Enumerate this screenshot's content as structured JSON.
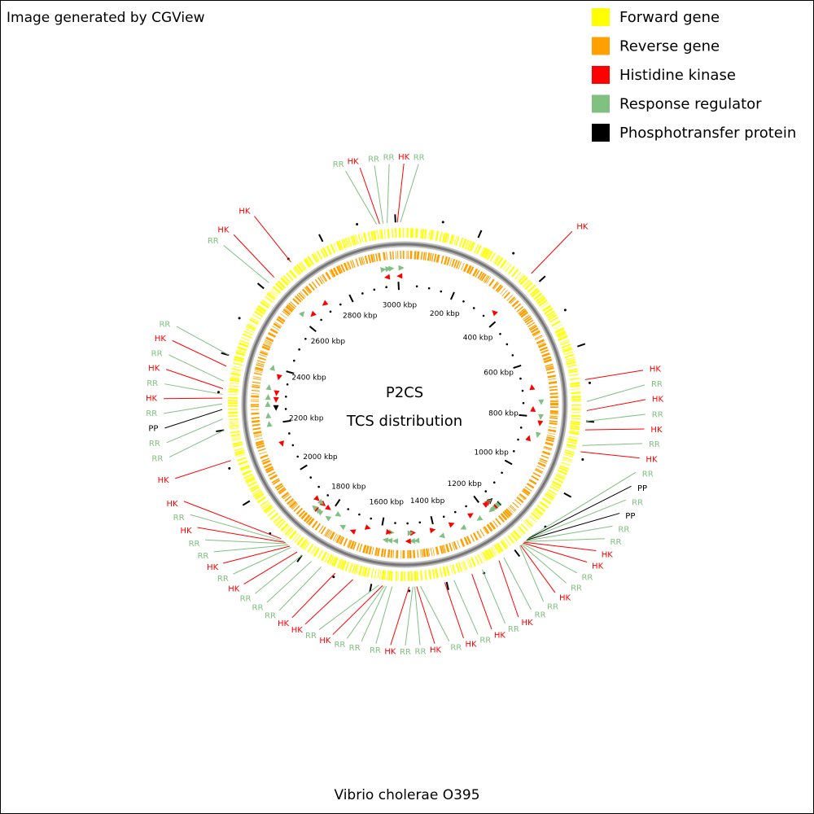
{
  "header": {
    "credit": "Image generated by CGView"
  },
  "legend": [
    {
      "label": "Forward gene",
      "color": "#ffff00"
    },
    {
      "label": "Reverse gene",
      "color": "#ff9f00"
    },
    {
      "label": "Histidine kinase",
      "color": "#ff0000"
    },
    {
      "label": "Response regulator",
      "color": "#80c080"
    },
    {
      "label": "Phosphotransfer protein",
      "color": "#000000"
    }
  ],
  "center": {
    "title": "P2CS",
    "subtitle": "TCS distribution"
  },
  "ruler": {
    "genome_length_kbp": 3024,
    "ticks": [
      {
        "value": 200,
        "label": "200 kbp"
      },
      {
        "value": 400,
        "label": "400 kbp"
      },
      {
        "value": 600,
        "label": "600 kbp"
      },
      {
        "value": 800,
        "label": "800 kbp"
      },
      {
        "value": 1000,
        "label": "1000 kbp"
      },
      {
        "value": 1200,
        "label": "1200 kbp"
      },
      {
        "value": 1400,
        "label": "1400 kbp"
      },
      {
        "value": 1600,
        "label": "1600 kbp"
      },
      {
        "value": 1800,
        "label": "1800 kbp"
      },
      {
        "value": 2000,
        "label": "2000 kbp"
      },
      {
        "value": 2200,
        "label": "2200 kbp"
      },
      {
        "value": 2400,
        "label": "2400 kbp"
      },
      {
        "value": 2600,
        "label": "2600 kbp"
      },
      {
        "value": 2800,
        "label": "2800 kbp"
      },
      {
        "value": 3000,
        "label": "3000 kbp"
      }
    ]
  },
  "features": [
    {
      "label": "HK",
      "legend": 2,
      "position_kbp": 370,
      "strand": "-"
    },
    {
      "label": "HK",
      "legend": 2,
      "position_kbp": 690,
      "strand": "-"
    },
    {
      "label": "RR",
      "legend": 3,
      "position_kbp": 748,
      "strand": "+"
    },
    {
      "label": "HK",
      "legend": 2,
      "position_kbp": 772,
      "strand": "-"
    },
    {
      "label": "RR",
      "legend": 3,
      "position_kbp": 800,
      "strand": "+"
    },
    {
      "label": "HK",
      "legend": 2,
      "position_kbp": 823,
      "strand": "+"
    },
    {
      "label": "RR",
      "legend": 3,
      "position_kbp": 865,
      "strand": "+"
    },
    {
      "label": "HK",
      "legend": 2,
      "position_kbp": 882,
      "strand": "-"
    },
    {
      "label": "RR",
      "legend": 3,
      "position_kbp": 1150,
      "strand": "+"
    },
    {
      "label": "PP",
      "legend": 4,
      "position_kbp": 1153,
      "strand": "+"
    },
    {
      "label": "RR",
      "legend": 3,
      "position_kbp": 1156,
      "strand": "+"
    },
    {
      "label": "PP",
      "legend": 4,
      "position_kbp": 1159,
      "strand": "-"
    },
    {
      "label": "RR",
      "legend": 3,
      "position_kbp": 1162,
      "strand": "+"
    },
    {
      "label": "RR",
      "legend": 3,
      "position_kbp": 1165,
      "strand": "-"
    },
    {
      "label": "HK",
      "legend": 2,
      "position_kbp": 1168,
      "strand": "+"
    },
    {
      "label": "HK",
      "legend": 2,
      "position_kbp": 1171,
      "strand": "-"
    },
    {
      "label": "RR",
      "legend": 3,
      "position_kbp": 1174,
      "strand": "+"
    },
    {
      "label": "RR",
      "legend": 3,
      "position_kbp": 1177,
      "strand": "-"
    },
    {
      "label": "HK",
      "legend": 2,
      "position_kbp": 1180,
      "strand": "-"
    },
    {
      "label": "RR",
      "legend": 3,
      "position_kbp": 1183,
      "strand": "+"
    },
    {
      "label": "RR",
      "legend": 3,
      "position_kbp": 1235,
      "strand": "+"
    },
    {
      "label": "HK",
      "legend": 2,
      "position_kbp": 1250,
      "strand": "-"
    },
    {
      "label": "RR",
      "legend": 3,
      "position_kbp": 1300,
      "strand": "+"
    },
    {
      "label": "HK",
      "legend": 2,
      "position_kbp": 1330,
      "strand": "-"
    },
    {
      "label": "RR",
      "legend": 3,
      "position_kbp": 1380,
      "strand": "+"
    },
    {
      "label": "HK",
      "legend": 2,
      "position_kbp": 1405,
      "strand": "-"
    },
    {
      "label": "RR",
      "legend": 3,
      "position_kbp": 1470,
      "strand": "+"
    },
    {
      "label": "HK",
      "legend": 2,
      "position_kbp": 1480,
      "strand": "-"
    },
    {
      "label": "RR",
      "legend": 3,
      "position_kbp": 1485,
      "strand": "+"
    },
    {
      "label": "RR",
      "legend": 3,
      "position_kbp": 1490,
      "strand": "-"
    },
    {
      "label": "HK",
      "legend": 2,
      "position_kbp": 1500,
      "strand": "+"
    },
    {
      "label": "RR",
      "legend": 3,
      "position_kbp": 1545,
      "strand": "+"
    },
    {
      "label": "RR",
      "legend": 3,
      "position_kbp": 1560,
      "strand": "-"
    },
    {
      "label": "RR",
      "legend": 3,
      "position_kbp": 1565,
      "strand": "+"
    },
    {
      "label": "HK",
      "legend": 2,
      "position_kbp": 1570,
      "strand": "-"
    },
    {
      "label": "RR",
      "legend": 3,
      "position_kbp": 1580,
      "strand": "+"
    },
    {
      "label": "HK",
      "legend": 2,
      "position_kbp": 1650,
      "strand": "-"
    },
    {
      "label": "HK",
      "legend": 2,
      "position_kbp": 1700,
      "strand": "+"
    },
    {
      "label": "RR",
      "legend": 3,
      "position_kbp": 1740,
      "strand": "+"
    },
    {
      "label": "RR",
      "legend": 3,
      "position_kbp": 1770,
      "strand": "-"
    },
    {
      "label": "RR",
      "legend": 3,
      "position_kbp": 1800,
      "strand": "+"
    },
    {
      "label": "HK",
      "legend": 2,
      "position_kbp": 1815,
      "strand": "-"
    },
    {
      "label": "RR",
      "legend": 3,
      "position_kbp": 1835,
      "strand": "+"
    },
    {
      "label": "HK",
      "legend": 2,
      "position_kbp": 1840,
      "strand": "-"
    },
    {
      "label": "RR",
      "legend": 3,
      "position_kbp": 1845,
      "strand": "+"
    },
    {
      "label": "RR",
      "legend": 3,
      "position_kbp": 1850,
      "strand": "-"
    },
    {
      "label": "HK",
      "legend": 2,
      "position_kbp": 1855,
      "strand": "+"
    },
    {
      "label": "RR",
      "legend": 3,
      "position_kbp": 1860,
      "strand": "+"
    },
    {
      "label": "HK",
      "legend": 2,
      "position_kbp": 1870,
      "strand": "-"
    },
    {
      "label": "HK",
      "legend": 2,
      "position_kbp": 2118,
      "strand": "-"
    },
    {
      "label": "RR",
      "legend": 3,
      "position_kbp": 2200,
      "strand": "+"
    },
    {
      "label": "RR",
      "legend": 3,
      "position_kbp": 2230,
      "strand": "+"
    },
    {
      "label": "PP",
      "legend": 4,
      "position_kbp": 2255,
      "strand": "-"
    },
    {
      "label": "RR",
      "legend": 3,
      "position_kbp": 2270,
      "strand": "+"
    },
    {
      "label": "HK",
      "legend": 2,
      "position_kbp": 2285,
      "strand": "-"
    },
    {
      "label": "RR",
      "legend": 3,
      "position_kbp": 2295,
      "strand": "+"
    },
    {
      "label": "HK",
      "legend": 2,
      "position_kbp": 2310,
      "strand": "-"
    },
    {
      "label": "RR",
      "legend": 3,
      "position_kbp": 2330,
      "strand": "+"
    },
    {
      "label": "HK",
      "legend": 2,
      "position_kbp": 2370,
      "strand": "-"
    },
    {
      "label": "RR",
      "legend": 3,
      "position_kbp": 2400,
      "strand": "+"
    },
    {
      "label": "RR",
      "legend": 3,
      "position_kbp": 2620,
      "strand": "+"
    },
    {
      "label": "HK",
      "legend": 2,
      "position_kbp": 2640,
      "strand": "-"
    },
    {
      "label": "HK",
      "legend": 2,
      "position_kbp": 2700,
      "strand": "-"
    },
    {
      "label": "RR",
      "legend": 3,
      "position_kbp": 2950,
      "strand": "+"
    },
    {
      "label": "HK",
      "legend": 2,
      "position_kbp": 2958,
      "strand": "-"
    },
    {
      "label": "RR",
      "legend": 3,
      "position_kbp": 2967,
      "strand": "+"
    },
    {
      "label": "RR",
      "legend": 3,
      "position_kbp": 2978,
      "strand": "+"
    },
    {
      "label": "HK",
      "legend": 2,
      "position_kbp": 3005,
      "strand": "-"
    },
    {
      "label": "RR",
      "legend": 3,
      "position_kbp": 3013,
      "strand": "+"
    }
  ],
  "footer": {
    "organism": "Vibrio cholerae O395"
  }
}
